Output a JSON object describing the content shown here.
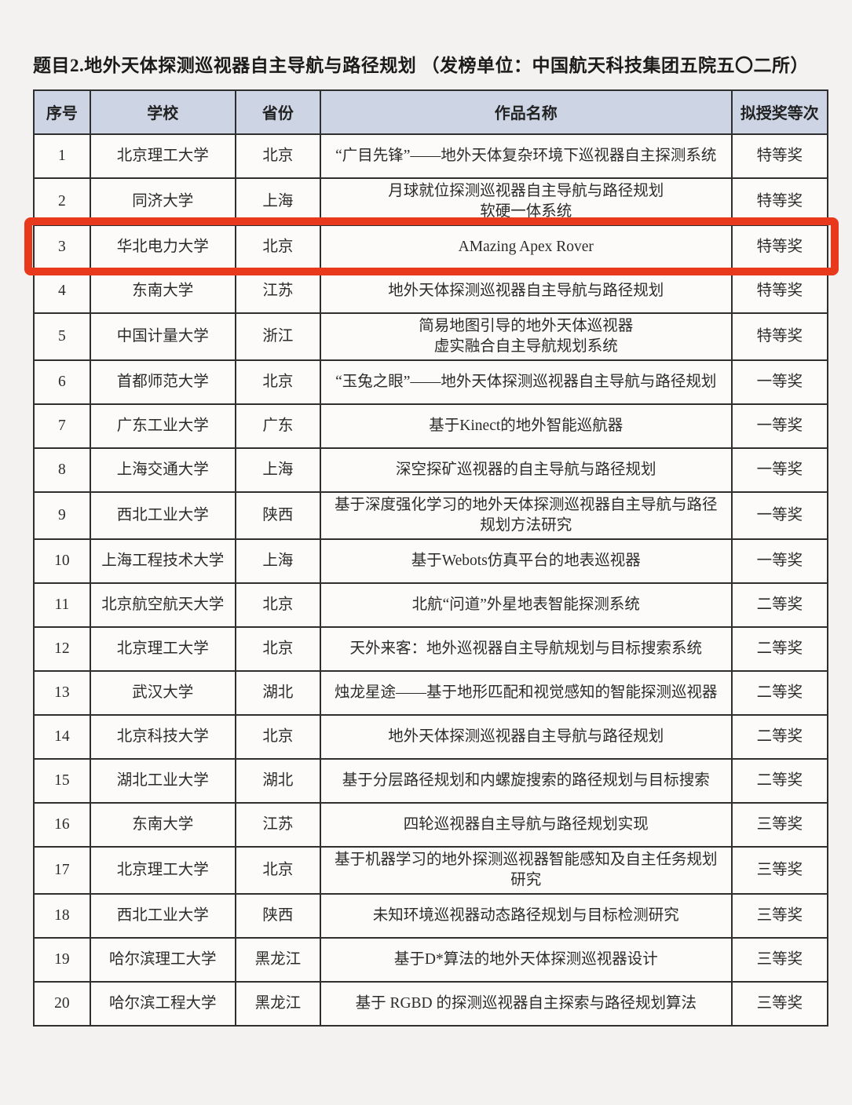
{
  "page": {
    "title": "题目2.地外天体探测巡视器自主导航与路径规划 （发榜单位：中国航天科技集团五院五〇二所）"
  },
  "table": {
    "headers": [
      "序号",
      "学校",
      "省份",
      "作品名称",
      "拟授奖等次"
    ],
    "highlight": {
      "row_no": "3",
      "color": "#e8391d"
    },
    "rows": [
      {
        "no": "1",
        "school": "北京理工大学",
        "province": "北京",
        "work": "“广目先锋”——地外天体复杂环境下巡视器自主探测系统",
        "award": "特等奖"
      },
      {
        "no": "2",
        "school": "同济大学",
        "province": "上海",
        "work": "月球就位探测巡视器自主导航与路径规划\n软硬一体系统",
        "award": "特等奖"
      },
      {
        "no": "3",
        "school": "华北电力大学",
        "province": "北京",
        "work": "AMazing Apex Rover",
        "award": "特等奖"
      },
      {
        "no": "4",
        "school": "东南大学",
        "province": "江苏",
        "work": "地外天体探测巡视器自主导航与路径规划",
        "award": "特等奖"
      },
      {
        "no": "5",
        "school": "中国计量大学",
        "province": "浙江",
        "work": "简易地图引导的地外天体巡视器\n虚实融合自主导航规划系统",
        "award": "特等奖"
      },
      {
        "no": "6",
        "school": "首都师范大学",
        "province": "北京",
        "work": "“玉兔之眼”——地外天体探测巡视器自主导航与路径规划",
        "award": "一等奖"
      },
      {
        "no": "7",
        "school": "广东工业大学",
        "province": "广东",
        "work": "基于Kinect的地外智能巡航器",
        "award": "一等奖"
      },
      {
        "no": "8",
        "school": "上海交通大学",
        "province": "上海",
        "work": "深空探矿巡视器的自主导航与路径规划",
        "award": "一等奖"
      },
      {
        "no": "9",
        "school": "西北工业大学",
        "province": "陕西",
        "work": "基于深度强化学习的地外天体探测巡视器自主导航与路径规划方法研究",
        "award": "一等奖"
      },
      {
        "no": "10",
        "school": "上海工程技术大学",
        "province": "上海",
        "work": "基于Webots仿真平台的地表巡视器",
        "award": "一等奖"
      },
      {
        "no": "11",
        "school": "北京航空航天大学",
        "province": "北京",
        "work": "北航“问道”外星地表智能探测系统",
        "award": "二等奖"
      },
      {
        "no": "12",
        "school": "北京理工大学",
        "province": "北京",
        "work": "天外来客：地外巡视器自主导航规划与目标搜索系统",
        "award": "二等奖"
      },
      {
        "no": "13",
        "school": "武汉大学",
        "province": "湖北",
        "work": "烛龙星途——基于地形匹配和视觉感知的智能探测巡视器",
        "award": "二等奖"
      },
      {
        "no": "14",
        "school": "北京科技大学",
        "province": "北京",
        "work": "地外天体探测巡视器自主导航与路径规划",
        "award": "二等奖"
      },
      {
        "no": "15",
        "school": "湖北工业大学",
        "province": "湖北",
        "work": "基于分层路径规划和内螺旋搜索的路径规划与目标搜索",
        "award": "二等奖"
      },
      {
        "no": "16",
        "school": "东南大学",
        "province": "江苏",
        "work": "四轮巡视器自主导航与路径规划实现",
        "award": "三等奖"
      },
      {
        "no": "17",
        "school": "北京理工大学",
        "province": "北京",
        "work": "基于机器学习的地外探测巡视器智能感知及自主任务规划研究",
        "award": "三等奖"
      },
      {
        "no": "18",
        "school": "西北工业大学",
        "province": "陕西",
        "work": "未知环境巡视器动态路径规划与目标检测研究",
        "award": "三等奖"
      },
      {
        "no": "19",
        "school": "哈尔滨理工大学",
        "province": "黑龙江",
        "work": "基于D*算法的地外天体探测巡视器设计",
        "award": "三等奖"
      },
      {
        "no": "20",
        "school": "哈尔滨工程大学",
        "province": "黑龙江",
        "work": "基于 RGBD 的探测巡视器自主探索与路径规划算法",
        "award": "三等奖"
      }
    ]
  }
}
